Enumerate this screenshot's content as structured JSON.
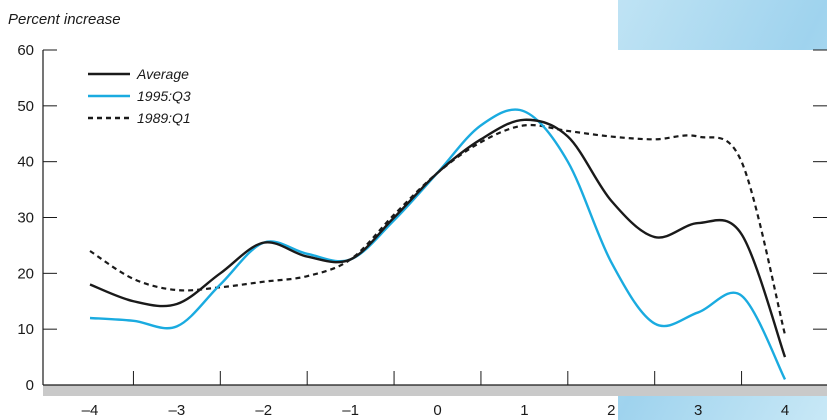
{
  "chart_data": {
    "type": "line",
    "ylabel": "Percent increase",
    "xlim": [
      -4,
      4
    ],
    "ylim": [
      0,
      60
    ],
    "x_ticks": [
      -4,
      -3,
      -2,
      -1,
      0,
      1,
      2,
      3,
      4
    ],
    "x_tick_labels": [
      "–4",
      "–3",
      "–2",
      "–1",
      "0",
      "1",
      "2",
      "3",
      "4"
    ],
    "y_ticks": [
      0,
      10,
      20,
      30,
      40,
      50,
      60
    ],
    "y_tick_labels": [
      "0",
      "10",
      "20",
      "30",
      "40",
      "50",
      "60"
    ],
    "legend_position": "top-left",
    "series": [
      {
        "name": "Average",
        "color": "#1a1a1a",
        "dash": "solid",
        "x": [
          -4,
          -3.5,
          -3,
          -2.5,
          -2,
          -1.5,
          -1,
          -0.5,
          0,
          0.5,
          1,
          1.5,
          2,
          2.5,
          3,
          3.5,
          4
        ],
        "y": [
          18,
          15,
          14.5,
          20,
          25.5,
          23,
          22.5,
          30,
          38,
          44,
          47.5,
          44.5,
          33,
          26.5,
          29,
          27,
          5
        ]
      },
      {
        "name": "1995:Q3",
        "color": "#1aabe0",
        "dash": "solid",
        "x": [
          -4,
          -3.5,
          -3,
          -2.5,
          -2,
          -1.5,
          -1,
          -0.5,
          0,
          0.5,
          1,
          1.5,
          2,
          2.5,
          3,
          3.5,
          4
        ],
        "y": [
          12,
          11.5,
          10.5,
          18,
          25.5,
          23.5,
          22.5,
          29.5,
          38,
          46.5,
          49,
          40,
          22,
          11,
          13,
          16,
          1
        ]
      },
      {
        "name": "1989:Q1",
        "color": "#1a1a1a",
        "dash": "dashed",
        "x": [
          -4,
          -3.5,
          -3,
          -2.5,
          -2,
          -1.5,
          -1,
          -0.5,
          0,
          0.5,
          1,
          1.5,
          2,
          2.5,
          3,
          3.5,
          4
        ],
        "y": [
          24,
          19,
          17,
          17.5,
          18.5,
          19.5,
          22.5,
          30.5,
          38,
          43.5,
          46.5,
          45.5,
          44.5,
          44,
          44.5,
          40,
          9
        ]
      }
    ]
  }
}
